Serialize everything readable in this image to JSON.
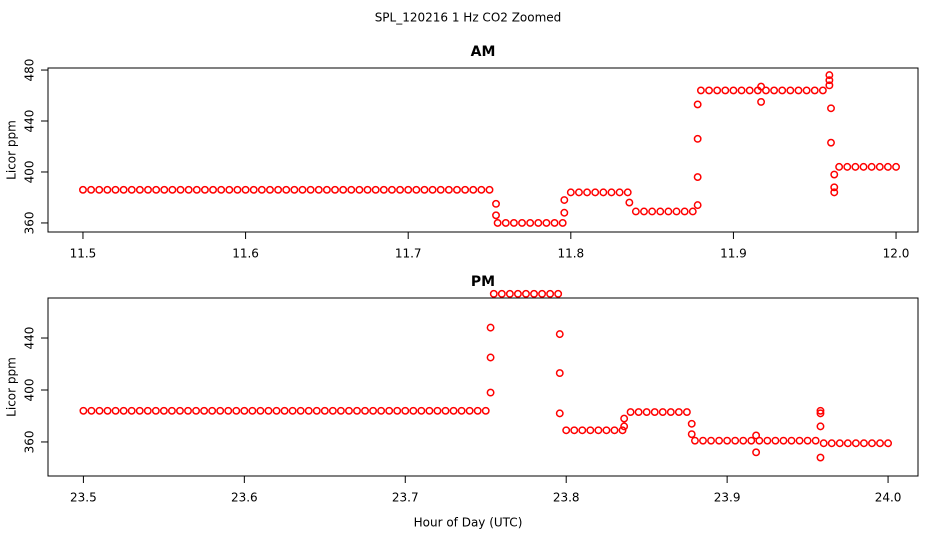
{
  "title": "SPL_120216  1 Hz CO2 Zoomed",
  "x_label": "Hour of Day (UTC)",
  "chart_data": [
    {
      "type": "scatter",
      "title": "AM",
      "y_label": "Licor ppm",
      "color": "#ff0000",
      "xlim": [
        11.4785,
        12.0135
      ],
      "ylim": [
        352.9,
        481.6
      ],
      "xticks": [
        11.5,
        11.6,
        11.7,
        11.8,
        11.9,
        {
          "value": 12,
          "label": "12.0"
        }
      ],
      "yticks": [
        360,
        400,
        440,
        480
      ],
      "x": [
        11.5,
        11.505,
        11.51,
        11.515,
        11.52,
        11.525,
        11.53,
        11.535,
        11.54,
        11.545,
        11.55,
        11.555,
        11.56,
        11.565,
        11.57,
        11.575,
        11.58,
        11.585,
        11.59,
        11.595,
        11.6,
        11.605,
        11.61,
        11.615,
        11.62,
        11.625,
        11.63,
        11.635,
        11.64,
        11.645,
        11.65,
        11.655,
        11.66,
        11.665,
        11.67,
        11.675,
        11.68,
        11.685,
        11.69,
        11.695,
        11.7,
        11.705,
        11.71,
        11.715,
        11.72,
        11.725,
        11.73,
        11.735,
        11.74,
        11.745,
        11.75,
        11.754,
        11.754,
        11.755,
        11.76,
        11.765,
        11.77,
        11.775,
        11.78,
        11.785,
        11.79,
        11.795,
        11.796,
        11.796,
        11.8,
        11.805,
        11.81,
        11.815,
        11.82,
        11.825,
        11.83,
        11.835,
        11.836,
        11.84,
        11.845,
        11.85,
        11.855,
        11.86,
        11.865,
        11.87,
        11.875,
        11.878,
        11.878,
        11.878,
        11.878,
        11.88,
        11.885,
        11.89,
        11.895,
        11.9,
        11.905,
        11.91,
        11.915,
        11.917,
        11.917,
        11.92,
        11.925,
        11.93,
        11.935,
        11.94,
        11.945,
        11.95,
        11.955,
        11.959,
        11.959,
        11.959,
        11.96,
        11.96,
        11.962,
        11.962,
        11.962,
        11.965,
        11.97,
        11.975,
        11.98,
        11.985,
        11.99,
        11.995,
        12.0
      ],
      "y": [
        386,
        386,
        386,
        386,
        386,
        386,
        386,
        386,
        386,
        386,
        386,
        386,
        386,
        386,
        386,
        386,
        386,
        386,
        386,
        386,
        386,
        386,
        386,
        386,
        386,
        386,
        386,
        386,
        386,
        386,
        386,
        386,
        386,
        386,
        386,
        386,
        386,
        386,
        386,
        386,
        386,
        386,
        386,
        386,
        386,
        386,
        386,
        386,
        386,
        386,
        386,
        375,
        366,
        360,
        360,
        360,
        360,
        360,
        360,
        360,
        360,
        360,
        368,
        378,
        384,
        384,
        384,
        384,
        384,
        384,
        384,
        384,
        376,
        369,
        369,
        369,
        369,
        369,
        369,
        369,
        369,
        374,
        396,
        426,
        453,
        464,
        464,
        464,
        464,
        464,
        464,
        464,
        464,
        455,
        467,
        464,
        464,
        464,
        464,
        464,
        464,
        464,
        464,
        476,
        472,
        468,
        450,
        423,
        384,
        388,
        398,
        404,
        404,
        404,
        404,
        404,
        404,
        404,
        404
      ]
    },
    {
      "type": "scatter",
      "title": "PM",
      "y_label": "Licor ppm",
      "color": "#ff0000",
      "xlim": [
        23.478,
        24.0186
      ],
      "ylim": [
        333.8,
        470.8
      ],
      "xticks": [
        23.5,
        23.6,
        23.7,
        23.8,
        23.9,
        {
          "value": 24,
          "label": "24.0"
        }
      ],
      "yticks": [
        360,
        400,
        440
      ],
      "x": [
        23.5,
        23.505,
        23.51,
        23.515,
        23.52,
        23.525,
        23.53,
        23.535,
        23.54,
        23.545,
        23.55,
        23.555,
        23.56,
        23.565,
        23.57,
        23.575,
        23.58,
        23.585,
        23.59,
        23.595,
        23.6,
        23.605,
        23.61,
        23.615,
        23.62,
        23.625,
        23.63,
        23.635,
        23.64,
        23.645,
        23.65,
        23.655,
        23.66,
        23.665,
        23.67,
        23.675,
        23.68,
        23.685,
        23.69,
        23.695,
        23.7,
        23.705,
        23.71,
        23.715,
        23.72,
        23.725,
        23.73,
        23.735,
        23.74,
        23.745,
        23.75,
        23.753,
        23.753,
        23.753,
        23.755,
        23.76,
        23.765,
        23.77,
        23.775,
        23.78,
        23.785,
        23.79,
        23.795,
        23.796,
        23.796,
        23.796,
        23.8,
        23.805,
        23.81,
        23.815,
        23.82,
        23.825,
        23.83,
        23.835,
        23.836,
        23.836,
        23.84,
        23.845,
        23.85,
        23.855,
        23.86,
        23.865,
        23.87,
        23.875,
        23.878,
        23.878,
        23.88,
        23.885,
        23.89,
        23.895,
        23.9,
        23.905,
        23.91,
        23.915,
        23.918,
        23.918,
        23.92,
        23.925,
        23.93,
        23.935,
        23.94,
        23.945,
        23.95,
        23.955,
        23.958,
        23.958,
        23.958,
        23.958,
        23.96,
        23.965,
        23.97,
        23.975,
        23.98,
        23.985,
        23.99,
        23.995,
        24.0
      ],
      "y": [
        384,
        384,
        384,
        384,
        384,
        384,
        384,
        384,
        384,
        384,
        384,
        384,
        384,
        384,
        384,
        384,
        384,
        384,
        384,
        384,
        384,
        384,
        384,
        384,
        384,
        384,
        384,
        384,
        384,
        384,
        384,
        384,
        384,
        384,
        384,
        384,
        384,
        384,
        384,
        384,
        384,
        384,
        384,
        384,
        384,
        384,
        384,
        384,
        384,
        384,
        384,
        398,
        425,
        448,
        474,
        474,
        474,
        474,
        474,
        474,
        474,
        474,
        474,
        443,
        413,
        382,
        369,
        369,
        369,
        369,
        369,
        369,
        369,
        369,
        372,
        378,
        383,
        383,
        383,
        383,
        383,
        383,
        383,
        383,
        374,
        366,
        361,
        361,
        361,
        361,
        361,
        361,
        361,
        361,
        365,
        352,
        361,
        361,
        361,
        361,
        361,
        361,
        361,
        361,
        382,
        384,
        372,
        348,
        359,
        359,
        359,
        359,
        359,
        359,
        359,
        359,
        359
      ]
    }
  ]
}
